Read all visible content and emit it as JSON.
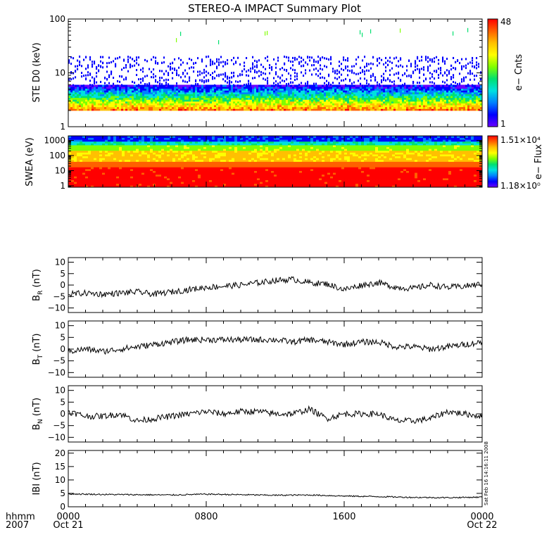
{
  "title": "STEREO-A IMPACT Summary Plot",
  "timestamp_stamp": "Sat Feb 16 14:16:11 2008",
  "colors": {
    "colormap": [
      "#6a00ff",
      "#0000ff",
      "#0080ff",
      "#00e0e0",
      "#00e070",
      "#80ff00",
      "#ffff00",
      "#ffc000",
      "#ff6000",
      "#ff0000"
    ],
    "line": "#000000",
    "frame": "#000000"
  },
  "time_axis": {
    "corner_top": "hhmm",
    "corner_bottom": "2007",
    "ticks": [
      {
        "hour": 0,
        "top": "0000",
        "bottom": "Oct 21"
      },
      {
        "hour": 8,
        "top": "0800",
        "bottom": ""
      },
      {
        "hour": 16,
        "top": "1600",
        "bottom": ""
      },
      {
        "hour": 24,
        "top": "0000",
        "bottom": "Oct 22"
      }
    ],
    "range_hours": [
      0,
      24
    ]
  },
  "chart_data": [
    {
      "type": "heatmap",
      "ylabel": "STE D0 (keV)",
      "yscale": "log",
      "ylim": [
        1,
        100
      ],
      "y_ticks": [
        {
          "v": 1,
          "label": "1"
        },
        {
          "v": 10,
          "label": "10"
        },
        {
          "v": 100,
          "label": "100"
        }
      ],
      "colorbar": {
        "label": "e− Cnts",
        "max_label": "48",
        "min_label": "1"
      },
      "description_bands_keV": {
        "dense_low": 2,
        "dense_high": 6,
        "sparse_high": 100
      }
    },
    {
      "type": "heatmap",
      "ylabel": "SWEA (eV)",
      "yscale": "log",
      "ylim": [
        0.8,
        2000
      ],
      "y_ticks": [
        {
          "v": 1,
          "label": "1"
        },
        {
          "v": 10,
          "label": "10"
        },
        {
          "v": 100,
          "label": "100"
        },
        {
          "v": 1000,
          "label": "1000"
        }
      ],
      "colorbar": {
        "label": "e− Flux",
        "max_label": "1.51×10⁴",
        "min_label": "1.18×10⁰"
      }
    },
    {
      "type": "line",
      "ylabel": "B_R (nT)",
      "ylabel_main": "B",
      "ylabel_sub": "R",
      "ylabel_unit": "(nT)",
      "ylim": [
        -12,
        12
      ],
      "y_ticks": [
        {
          "v": -10,
          "label": "−10"
        },
        {
          "v": -5,
          "label": "−5"
        },
        {
          "v": 0,
          "label": "0"
        },
        {
          "v": 5,
          "label": "5"
        },
        {
          "v": 10,
          "label": "10"
        }
      ],
      "x": [
        0,
        1,
        2,
        3,
        4,
        5,
        6,
        7,
        8,
        9,
        10,
        11,
        12,
        13,
        14,
        15,
        16,
        17,
        18,
        19,
        20,
        21,
        22,
        23,
        24
      ],
      "values": [
        -4,
        -3.5,
        -4,
        -3.5,
        -3,
        -4,
        -3,
        -2,
        -1,
        -0.5,
        0,
        1,
        2,
        2.5,
        1,
        0.5,
        -2,
        0,
        1,
        -1,
        -1.5,
        0,
        -1,
        -0.5,
        0.5
      ]
    },
    {
      "type": "line",
      "ylabel": "B_T (nT)",
      "ylabel_main": "B",
      "ylabel_sub": "T",
      "ylabel_unit": "(nT)",
      "ylim": [
        -12,
        12
      ],
      "y_ticks": [
        {
          "v": -10,
          "label": "−10"
        },
        {
          "v": -5,
          "label": "−5"
        },
        {
          "v": 0,
          "label": "0"
        },
        {
          "v": 5,
          "label": "5"
        },
        {
          "v": 10,
          "label": "10"
        }
      ],
      "x": [
        0,
        1,
        2,
        3,
        4,
        5,
        6,
        7,
        8,
        9,
        10,
        11,
        12,
        13,
        14,
        15,
        16,
        17,
        18,
        19,
        20,
        21,
        22,
        23,
        24
      ],
      "values": [
        -1,
        0,
        -1,
        0,
        1,
        2,
        3,
        4,
        4,
        4,
        4,
        4,
        4,
        3,
        4,
        3,
        2,
        3,
        3,
        1,
        1,
        0,
        1,
        2,
        3
      ]
    },
    {
      "type": "line",
      "ylabel": "B_N (nT)",
      "ylabel_main": "B",
      "ylabel_sub": "N",
      "ylabel_unit": "(nT)",
      "ylim": [
        -12,
        12
      ],
      "y_ticks": [
        {
          "v": -10,
          "label": "−10"
        },
        {
          "v": -5,
          "label": "−5"
        },
        {
          "v": 0,
          "label": "0"
        },
        {
          "v": 5,
          "label": "5"
        },
        {
          "v": 10,
          "label": "10"
        }
      ],
      "x": [
        0,
        1,
        2,
        3,
        4,
        5,
        6,
        7,
        8,
        9,
        10,
        11,
        12,
        13,
        14,
        15,
        16,
        17,
        18,
        19,
        20,
        21,
        22,
        23,
        24
      ],
      "values": [
        1,
        -1,
        -1,
        0,
        -3,
        -2,
        -1,
        0,
        1,
        0,
        1,
        1,
        0,
        0,
        2,
        -2,
        0,
        0,
        0,
        -3,
        -3,
        -2,
        1,
        0,
        -1
      ]
    },
    {
      "type": "line",
      "ylabel": "|B| (nT)",
      "ylabel_main": "IBI",
      "ylabel_sub": "",
      "ylabel_unit": "(nT)",
      "ylim": [
        0,
        21
      ],
      "y_ticks": [
        {
          "v": 0,
          "label": "0"
        },
        {
          "v": 5,
          "label": "5"
        },
        {
          "v": 10,
          "label": "10"
        },
        {
          "v": 15,
          "label": "15"
        },
        {
          "v": 20,
          "label": "20"
        }
      ],
      "x": [
        0,
        2,
        4,
        6,
        8,
        10,
        12,
        14,
        16,
        18,
        20,
        22,
        24
      ],
      "values": [
        4.8,
        4.6,
        4.5,
        4.4,
        4.7,
        4.5,
        4.3,
        4.4,
        4.0,
        3.8,
        3.5,
        3.4,
        3.6
      ]
    }
  ]
}
